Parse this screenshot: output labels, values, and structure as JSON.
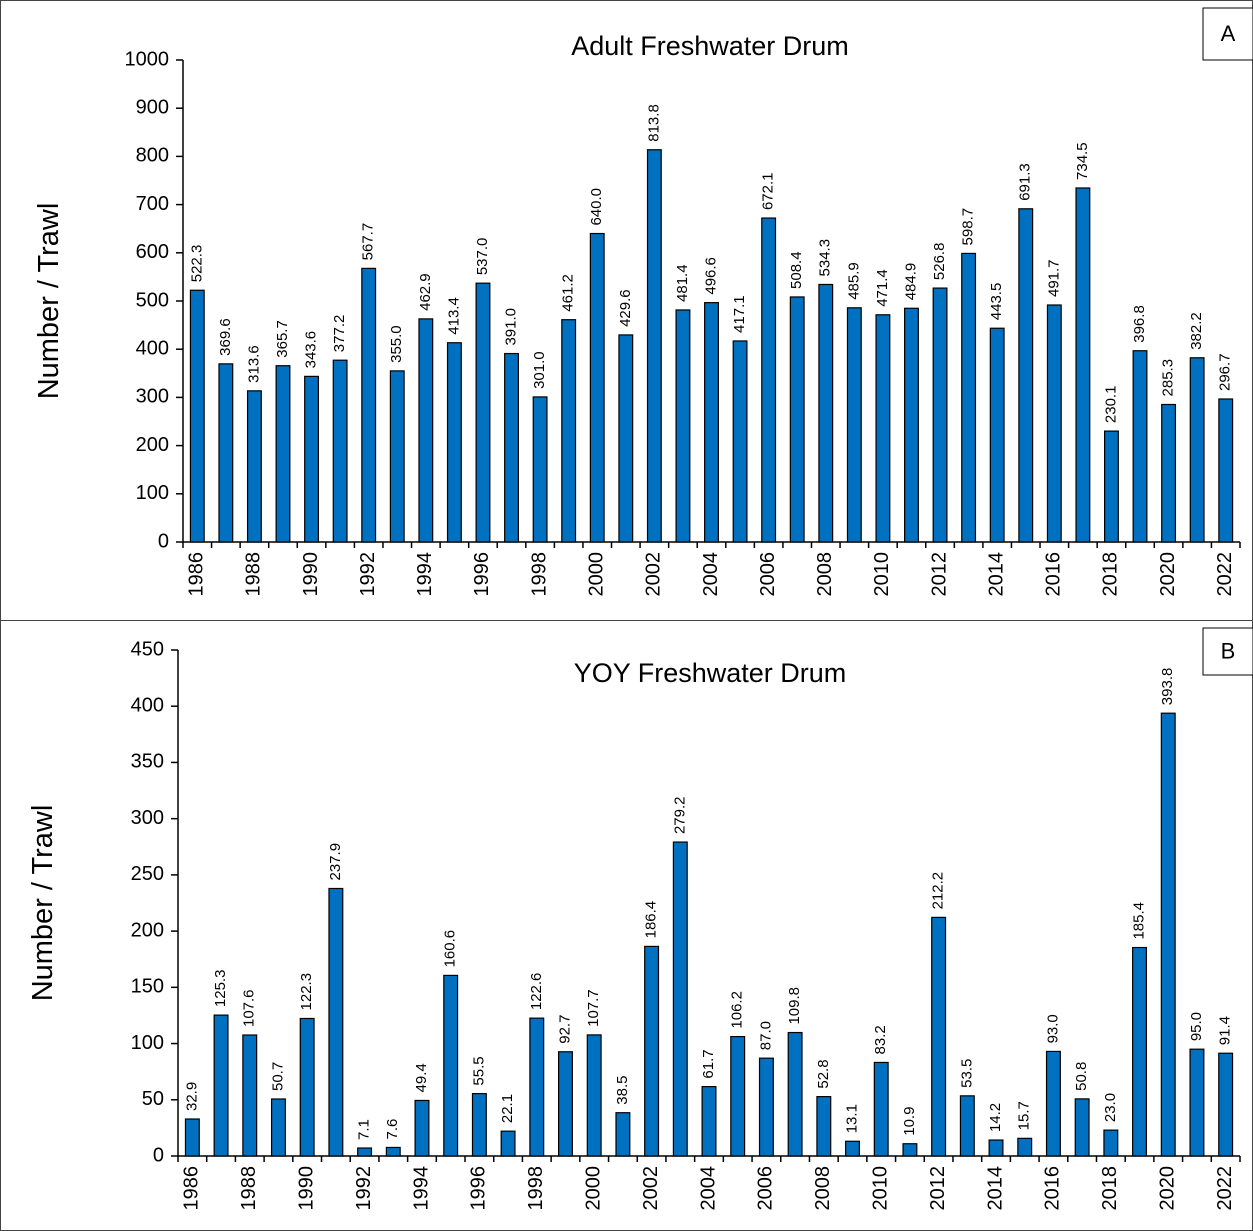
{
  "chart_data": [
    {
      "type": "bar",
      "title": "Adult Freshwater Drum",
      "panel_label": "A",
      "ylabel": "Number / Trawl",
      "color": "#0070c0",
      "categories": [
        "1986",
        null,
        "1988",
        null,
        "1990",
        null,
        "1992",
        null,
        "1994",
        null,
        "1996",
        null,
        "1998",
        null,
        "2000",
        null,
        "2002",
        null,
        "2004",
        null,
        "2006",
        null,
        "2008",
        null,
        "2010",
        null,
        "2012",
        null,
        "2014",
        null,
        "2016",
        null,
        "2018",
        null,
        "2020",
        null,
        "2022"
      ],
      "values": [
        522.3,
        369.6,
        313.6,
        365.7,
        343.6,
        377.2,
        567.7,
        355.0,
        462.9,
        413.4,
        537.0,
        391.0,
        301.0,
        461.2,
        640.0,
        429.6,
        813.8,
        481.4,
        496.6,
        417.1,
        672.1,
        508.4,
        534.3,
        485.9,
        471.4,
        484.9,
        526.8,
        598.7,
        443.5,
        691.3,
        491.7,
        734.5,
        230.1,
        396.8,
        285.3,
        382.2,
        296.7
      ],
      "value_labels": [
        "522.3",
        "369.6",
        "313.6",
        "365.7",
        "343.6",
        "377.2",
        "567.7",
        "355.0",
        "462.9",
        "413.4",
        "537.0",
        "391.0",
        "301.0",
        "461.2",
        "640.0",
        "429.6",
        "813.8",
        "481.4",
        "496.6",
        "417.1",
        "672.1",
        "508.4",
        "534.3",
        "485.9",
        "471.4",
        "484.9",
        "526.8",
        "598.7",
        "443.5",
        "691.3",
        "491.7",
        "734.5",
        "230.1",
        "396.8",
        "285.3",
        "382.2",
        "296.7"
      ],
      "ylim": [
        0,
        1000
      ],
      "yticks": [
        0,
        100,
        200,
        300,
        400,
        500,
        600,
        700,
        800,
        900,
        1000
      ],
      "grid": false
    },
    {
      "type": "bar",
      "title": "YOY Freshwater Drum",
      "panel_label": "B",
      "ylabel": "Number / Trawl",
      "color": "#0070c0",
      "categories": [
        "1986",
        null,
        "1988",
        null,
        "1990",
        null,
        "1992",
        null,
        "1994",
        null,
        "1996",
        null,
        "1998",
        null,
        "2000",
        null,
        "2002",
        null,
        "2004",
        null,
        "2006",
        null,
        "2008",
        null,
        "2010",
        null,
        "2012",
        null,
        "2014",
        null,
        "2016",
        null,
        "2018",
        null,
        "2020",
        null,
        "2022"
      ],
      "values": [
        32.9,
        125.3,
        107.6,
        50.7,
        122.3,
        237.9,
        7.1,
        7.6,
        49.4,
        160.6,
        55.5,
        22.1,
        122.6,
        92.7,
        107.7,
        38.5,
        186.4,
        279.2,
        61.7,
        106.2,
        87.0,
        109.8,
        52.8,
        13.1,
        83.2,
        10.9,
        212.2,
        53.5,
        14.2,
        15.7,
        93.0,
        50.8,
        23.0,
        185.4,
        393.8,
        95.0,
        91.4
      ],
      "value_labels": [
        "32.9",
        "125.3",
        "107.6",
        "50.7",
        "122.3",
        "237.9",
        "7.1",
        "7.6",
        "49.4",
        "160.6",
        "55.5",
        "22.1",
        "122.6",
        "92.7",
        "107.7",
        "38.5",
        "186.4",
        "279.2",
        "61.7",
        "106.2",
        "87.0",
        "109.8",
        "52.8",
        "13.1",
        "83.2",
        "10.9",
        "212.2",
        "53.5",
        "14.2",
        "15.7",
        "93.0",
        "50.8",
        "23.0",
        "185.4",
        "393.8",
        "95.0",
        "91.4"
      ],
      "ylim": [
        0,
        450
      ],
      "yticks": [
        0,
        50,
        100,
        150,
        200,
        250,
        300,
        350,
        400,
        450
      ],
      "grid": false
    }
  ]
}
